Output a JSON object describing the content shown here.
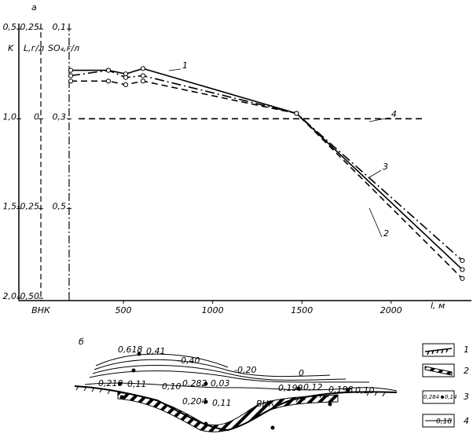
{
  "chart_data": {
    "type": "line",
    "panel_label": "а",
    "xlabel": "l, м",
    "x_origin_label": "ВНК",
    "ylabel": "K",
    "y2label": "L,г/л",
    "y3label": "SO₄,г/л",
    "xlim": [
      -110,
      2450
    ],
    "xticks": [
      500,
      1000,
      1500,
      2000
    ],
    "ylim": [
      2.0,
      0.5
    ],
    "yticks": [
      {
        "value": 0.5,
        "label": "0,5"
      },
      {
        "value": 1.0,
        "label": "1,0"
      },
      {
        "value": 1.5,
        "label": "1,5"
      },
      {
        "value": 2.0,
        "label": "2,0"
      }
    ],
    "y2lim": [
      -0.5,
      0.25
    ],
    "y2ticks": [
      {
        "value": 0.25,
        "label": "0,25"
      },
      0,
      {
        "value": -0.25,
        "label": "-0,25"
      },
      {
        "value": -0.5,
        "label": "-0,50"
      }
    ],
    "y3lim": [
      0.7,
      0.1
    ],
    "y3ticks": [
      {
        "value": 0.1,
        "label": "0,1"
      },
      {
        "value": 0.3,
        "label": "0,3"
      },
      {
        "value": 0.5,
        "label": "0,5"
      }
    ],
    "series": [
      {
        "name": "1",
        "color": "#000000",
        "style": "solid",
        "markers": true,
        "x": [
          205,
          416,
          513,
          610,
          1470,
          2399
        ],
        "values": [
          0.73,
          0.73,
          0.75,
          0.72,
          0.97,
          1.84
        ]
      },
      {
        "name": "2",
        "color": "#000000",
        "style": "dashed",
        "markers": true,
        "x": [
          205,
          416,
          513,
          610,
          1470,
          2399
        ],
        "values": [
          0.79,
          0.79,
          0.81,
          0.79,
          0.97,
          1.89
        ]
      },
      {
        "name": "3",
        "color": "#000000",
        "style": "dashdot",
        "markers": true,
        "x": [
          205,
          416,
          513,
          610,
          1470,
          2399
        ],
        "values": [
          0.76,
          0.73,
          0.77,
          0.76,
          0.97,
          1.79
        ]
      },
      {
        "name": "4",
        "color": "#000000",
        "style": "dashed",
        "markers": false,
        "x": [
          249,
          2187
        ],
        "values": [
          1.0,
          1.0
        ]
      }
    ]
  },
  "diagram": {
    "panel_label": "б",
    "contour_labels": [
      "0,618",
      "0,41",
      "-0,40",
      "-0,20",
      "0",
      "0,210",
      "0,11",
      "0,10",
      "0,282",
      "0,03",
      "0,204",
      "0,11",
      "0,199",
      "0,12",
      "0,198",
      "0,10"
    ],
    "layer_label": "ВНК",
    "legend": [
      {
        "label": "1"
      },
      {
        "label": "2"
      },
      {
        "label": "3",
        "values": [
          "0,284",
          "0,14"
        ]
      },
      {
        "label": "4",
        "value": "0,18"
      }
    ]
  }
}
